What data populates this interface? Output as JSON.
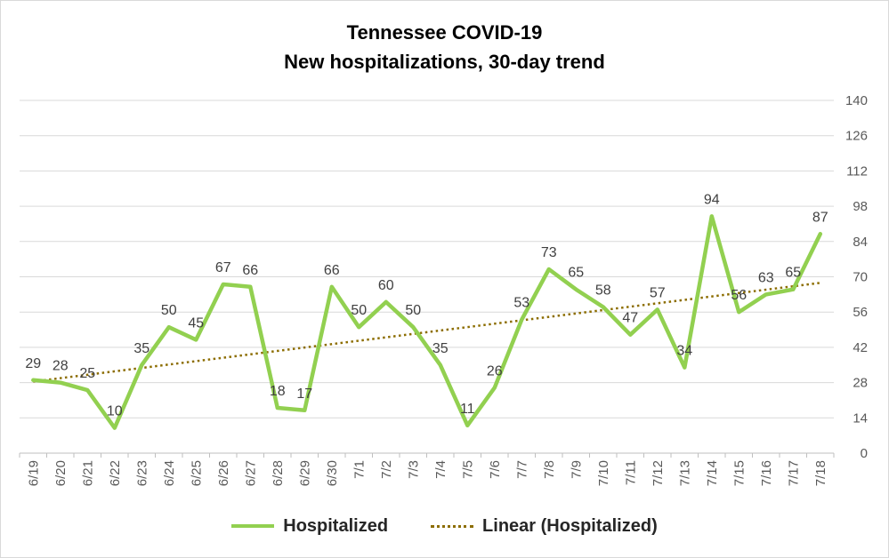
{
  "chart_data": {
    "type": "line",
    "title": "Tennessee COVID-19",
    "subtitle": "New hospitalizations, 30-day trend",
    "xlabel": "",
    "ylabel": "",
    "categories": [
      "6/19",
      "6/20",
      "6/21",
      "6/22",
      "6/23",
      "6/24",
      "6/25",
      "6/26",
      "6/27",
      "6/28",
      "6/29",
      "6/30",
      "7/1",
      "7/2",
      "7/3",
      "7/4",
      "7/5",
      "7/6",
      "7/7",
      "7/8",
      "7/9",
      "7/10",
      "7/11",
      "7/12",
      "7/13",
      "7/14",
      "7/15",
      "7/16",
      "7/17",
      "7/18"
    ],
    "series": [
      {
        "name": "Hospitalized",
        "values": [
          29,
          28,
          25,
          10,
          35,
          50,
          45,
          67,
          66,
          18,
          17,
          66,
          50,
          60,
          50,
          35,
          11,
          26,
          53,
          73,
          65,
          58,
          47,
          57,
          34,
          94,
          56,
          63,
          65,
          87
        ],
        "color": "#92d050",
        "style": "solid"
      },
      {
        "name": "Linear (Hospitalized)",
        "trendline_of": "Hospitalized",
        "color": "#8c6d00",
        "style": "dotted"
      }
    ],
    "ylim": [
      0,
      140
    ],
    "yticks": [
      "0",
      "14",
      "28",
      "42",
      "56",
      "70",
      "84",
      "98",
      "112",
      "126",
      "140"
    ],
    "y_axis_side": "right",
    "grid": true,
    "legend_position": "bottom",
    "data_labels": true
  }
}
